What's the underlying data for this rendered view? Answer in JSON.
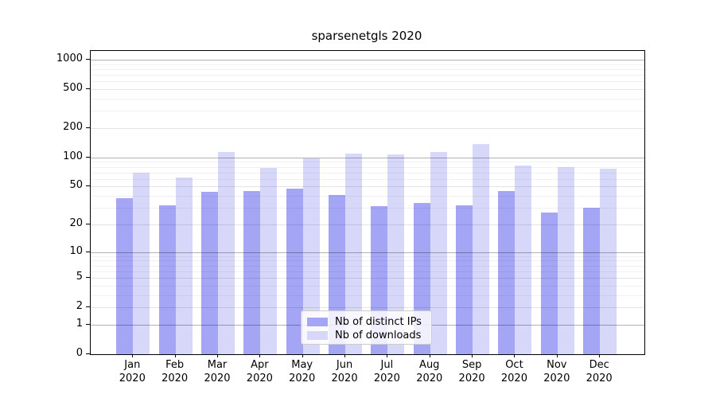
{
  "title": "sparsenetgls 2020",
  "chart_data": {
    "type": "bar",
    "title": "sparsenetgls 2020",
    "xlabel": "",
    "ylabel": "",
    "categories": [
      "Jan",
      "Feb",
      "Mar",
      "Apr",
      "May",
      "Jun",
      "Jul",
      "Aug",
      "Sep",
      "Oct",
      "Nov",
      "Dec"
    ],
    "year_label": "2020",
    "series": [
      {
        "name": "Nb of distinct IPs",
        "color": "#a5a5f5",
        "values": [
          38,
          32,
          44,
          45,
          48,
          41,
          31,
          34,
          32,
          45,
          27,
          30
        ]
      },
      {
        "name": "Nb of downloads",
        "color": "#d7d7fa",
        "values": [
          70,
          62,
          114,
          78,
          98,
          109,
          107,
          114,
          138,
          83,
          79,
          76
        ]
      }
    ],
    "yscale": "log1p",
    "y_ticks": [
      1000,
      500,
      200,
      100,
      50,
      20,
      10,
      5,
      2,
      1,
      0
    ],
    "ylim": [
      0,
      1230
    ],
    "grid": true,
    "legend_position": "bottom-center",
    "colors": {
      "decade_gridline": "rgba(0,0,0,0.30)",
      "major_gridline": "rgba(0,0,0,0.11)",
      "minor_gridline": "rgba(0,0,0,0.055)",
      "axis": "#000000"
    }
  }
}
